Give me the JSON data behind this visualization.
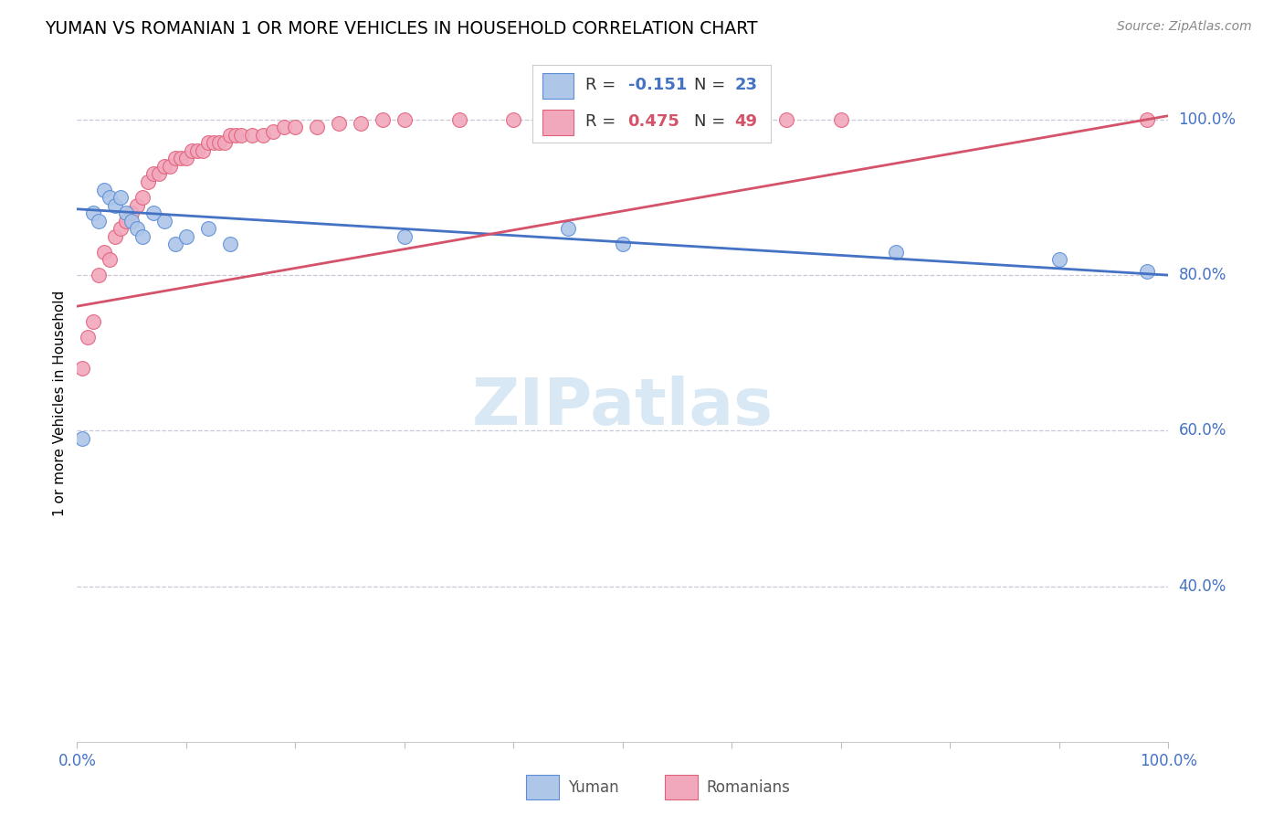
{
  "title": "YUMAN VS ROMANIAN 1 OR MORE VEHICLES IN HOUSEHOLD CORRELATION CHART",
  "source": "Source: ZipAtlas.com",
  "ylabel": "1 or more Vehicles in Household",
  "legend_yuman": "Yuman",
  "legend_romanians": "Romanians",
  "R_yuman": -0.151,
  "N_yuman": 23,
  "R_romanian": 0.475,
  "N_romanian": 49,
  "yuman_x": [
    0.5,
    1.5,
    2.0,
    2.5,
    3.0,
    3.5,
    4.0,
    4.5,
    5.0,
    5.5,
    6.0,
    7.0,
    8.0,
    9.0,
    10.0,
    12.0,
    14.0,
    30.0,
    45.0,
    50.0,
    75.0,
    90.0,
    98.0
  ],
  "yuman_y": [
    59.0,
    88.0,
    87.0,
    91.0,
    90.0,
    89.0,
    90.0,
    88.0,
    87.0,
    86.0,
    85.0,
    88.0,
    87.0,
    84.0,
    85.0,
    86.0,
    84.0,
    85.0,
    86.0,
    84.0,
    83.0,
    82.0,
    80.5
  ],
  "romanian_x": [
    0.5,
    1.0,
    1.5,
    2.0,
    2.5,
    3.0,
    3.5,
    4.0,
    4.5,
    5.0,
    5.5,
    6.0,
    6.5,
    7.0,
    7.5,
    8.0,
    8.5,
    9.0,
    9.5,
    10.0,
    10.5,
    11.0,
    11.5,
    12.0,
    12.5,
    13.0,
    13.5,
    14.0,
    14.5,
    15.0,
    16.0,
    17.0,
    18.0,
    19.0,
    20.0,
    22.0,
    24.0,
    26.0,
    28.0,
    30.0,
    35.0,
    40.0,
    45.0,
    50.0,
    55.0,
    60.0,
    65.0,
    70.0,
    98.0
  ],
  "romanian_y": [
    68.0,
    72.0,
    74.0,
    80.0,
    83.0,
    82.0,
    85.0,
    86.0,
    87.0,
    88.0,
    89.0,
    90.0,
    92.0,
    93.0,
    93.0,
    94.0,
    94.0,
    95.0,
    95.0,
    95.0,
    96.0,
    96.0,
    96.0,
    97.0,
    97.0,
    97.0,
    97.0,
    98.0,
    98.0,
    98.0,
    98.0,
    98.0,
    98.5,
    99.0,
    99.0,
    99.0,
    99.5,
    99.5,
    100.0,
    100.0,
    100.0,
    100.0,
    100.0,
    100.0,
    100.0,
    100.0,
    100.0,
    100.0,
    100.0
  ],
  "yuman_color": "#aec6e8",
  "romanian_color": "#f2a8bc",
  "yuman_edge_color": "#5b8dd9",
  "romanian_edge_color": "#e0607a",
  "yuman_line_color": "#4472c4",
  "romanian_line_color": "#d4526a",
  "bg_color": "#ffffff",
  "grid_color": "#c8c8d8",
  "title_color": "#000000",
  "axis_label_color": "#4472c4",
  "legend_R_color": "#555555",
  "legend_yuman_val_color": "#4472c4",
  "legend_romanian_val_color": "#d4526a",
  "watermark_text": "ZIPatlas",
  "watermark_color": "#d8e8f5",
  "yaxis_ticks": [
    40.0,
    60.0,
    80.0,
    100.0
  ],
  "yaxis_labels": [
    "40.0%",
    "60.0%",
    "80.0%",
    "100.0%"
  ],
  "xlim": [
    0,
    100
  ],
  "ylim": [
    20,
    107
  ],
  "yuman_trend": [
    88.5,
    80.0
  ],
  "romanian_trend": [
    76.0,
    100.5
  ]
}
